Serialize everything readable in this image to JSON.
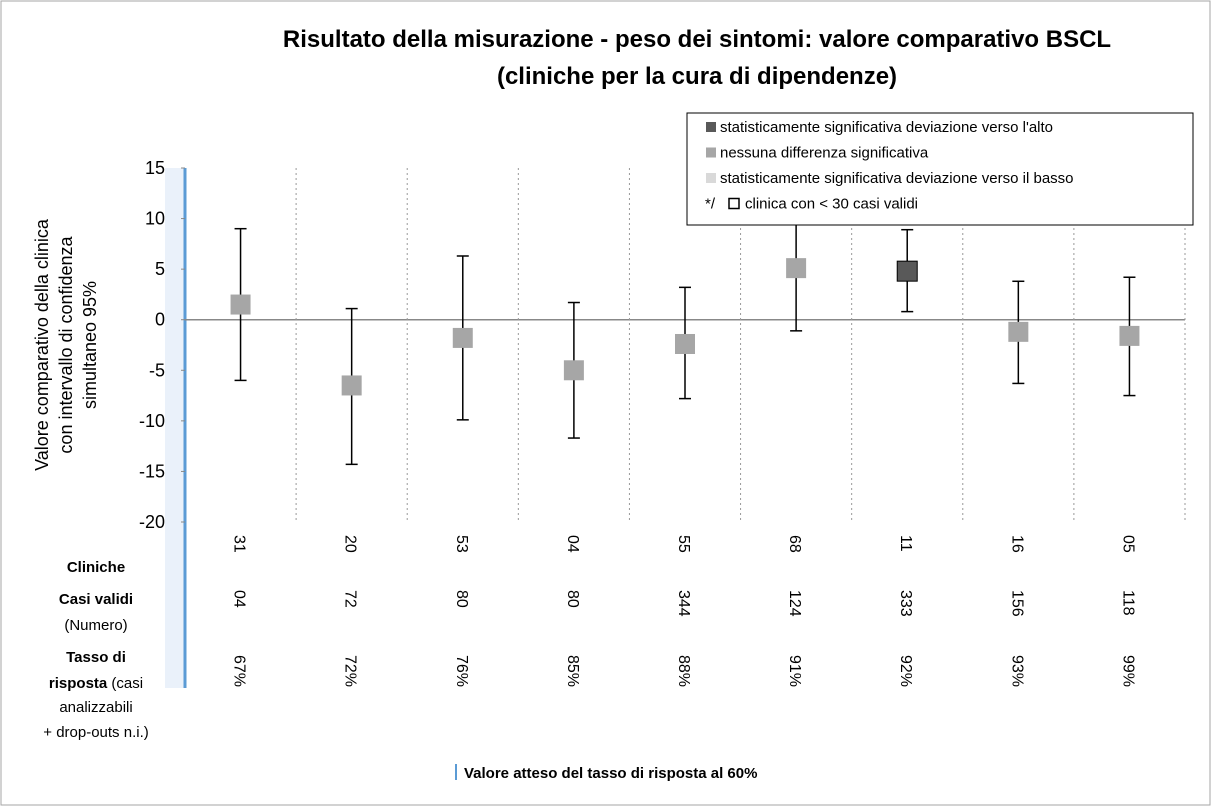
{
  "chart_data": {
    "type": "errorbar",
    "title": [
      "Risultato della misurazione - peso dei sintomi: valore comparativo BSCL",
      "(cliniche per la cura di dipendenze)"
    ],
    "y_label": [
      "Valore comparativo della clinica",
      "con intervallo di confidenza",
      "simultaneo 95%"
    ],
    "categories": [
      "31",
      "20",
      "53",
      "04",
      "55",
      "68",
      "11",
      "16",
      "05"
    ],
    "values": [
      1.5,
      -6.5,
      -1.8,
      -5,
      -2.4,
      5.1,
      4.8,
      -1.2,
      -1.6
    ],
    "upper": [
      9,
      1.1,
      6.3,
      1.7,
      3.2,
      11.5,
      8.9,
      3.8,
      4.2
    ],
    "lower": [
      -6,
      -14.3,
      -9.9,
      -11.7,
      -7.8,
      -1.1,
      0.8,
      -6.3,
      -7.5
    ],
    "point_colors": [
      "#a6a6a6",
      "#a6a6a6",
      "#a6a6a6",
      "#a6a6a6",
      "#a6a6a6",
      "#a6a6a6",
      "#595959",
      "#a6a6a6",
      "#a6a6a6"
    ],
    "ylim": [
      -20,
      15
    ],
    "yticks": [
      -20,
      -15,
      -10,
      -5,
      0,
      5,
      10,
      15
    ],
    "grid": true,
    "legend": [
      {
        "name": "statisticamente significativa deviazione verso l'alto",
        "color": "#595959"
      },
      {
        "name": "nessuna differenza significativa",
        "color": "#a6a6a6"
      },
      {
        "name": "statisticamente significativa deviazione verso il basso",
        "color": "#d9d9d9"
      },
      {
        "prefix": "*/",
        "name": "clinica con < 30 casi validi",
        "color": "#ffffff"
      }
    ],
    "rows": [
      {
        "bold": "Cliniche",
        "normal": [],
        "cells": [
          "31",
          "20",
          "53",
          "04",
          "55",
          "68",
          "11",
          "16",
          "05"
        ]
      },
      {
        "bold": "Casi validi",
        "normal": [
          "(Numero)"
        ],
        "cells": [
          "04",
          "72",
          "80",
          "80",
          "344",
          "124",
          "333",
          "156",
          "118"
        ]
      },
      {
        "bold": "Tasso di",
        "bold2": "risposta",
        "normal": [
          "(casi",
          "analizzabili",
          "+ drop-outs n.i.)"
        ],
        "cells": [
          "67%",
          "72%",
          "76%",
          "85%",
          "88%",
          "91%",
          "92%",
          "93%",
          "99%"
        ]
      }
    ],
    "reference_line_color": "#5b9bd5",
    "footnote": "Valore atteso del tasso di risposta al 60%"
  }
}
